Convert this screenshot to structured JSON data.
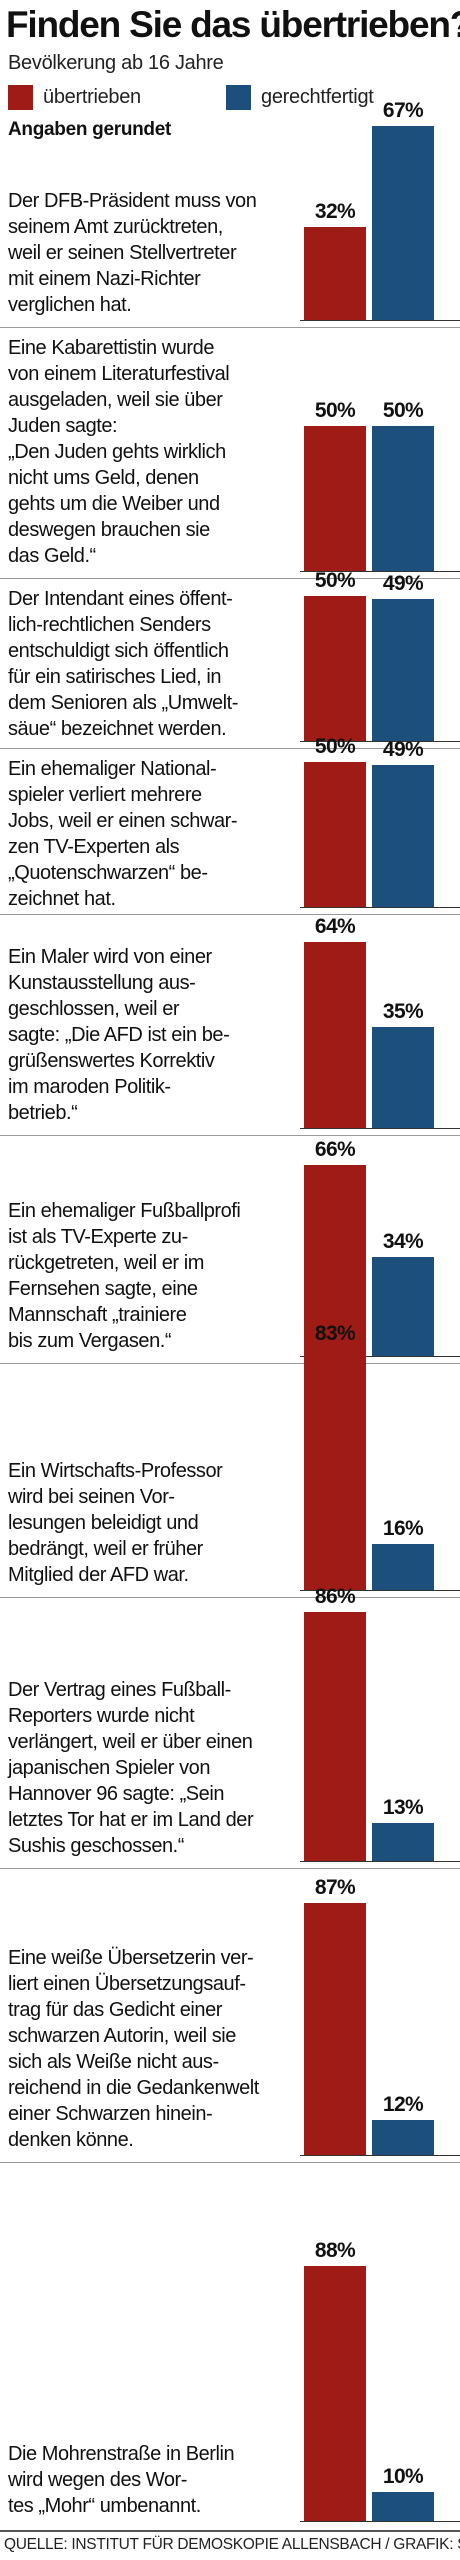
{
  "title": "Finden Sie das übertrieben?",
  "subtitle": "Bevölkerung ab 16 Jahre",
  "note": "Angaben gerundet",
  "source": "QUELLE: INSTITUT FÜR DEMOSKOPIE ALLENSBACH / GRAFIK: SK",
  "colors": {
    "uebertrieben": "#9e1b16",
    "gerechtfertigt": "#1d4f7c"
  },
  "legend": [
    {
      "label": "übertrieben",
      "color": "#9e1b16"
    },
    {
      "label": "gerechtfertigt",
      "color": "#1d4f7c"
    }
  ],
  "chart_data": {
    "type": "bar",
    "title": "Finden Sie das übertrieben?",
    "subtitle": "Bevölkerung ab 16 Jahre",
    "orientation": "vertical",
    "grid": false,
    "legend_position": "top-left",
    "ylim": [
      0,
      100
    ],
    "series": [
      {
        "name": "übertrieben",
        "color": "#9e1b16",
        "values": [
          32,
          50,
          50,
          50,
          64,
          66,
          83,
          86,
          87,
          88
        ]
      },
      {
        "name": "gerechtfertigt",
        "color": "#1d4f7c",
        "values": [
          67,
          50,
          49,
          49,
          35,
          34,
          16,
          13,
          12,
          10
        ]
      }
    ],
    "categories": [
      "Der DFB-Präsident muss von\nseinem Amt zurücktreten,\nweil er seinen Stellvertreter\nmit einem Nazi-Richter\nverglichen hat.",
      "Eine Kabarettistin wurde\nvon einem Literaturfestival\nausgeladen, weil sie über\nJuden sagte:\n„Den Juden gehts wirklich\nnicht ums Geld, denen\ngehts um die Weiber und\ndeswegen brauchen sie\ndas Geld.“",
      "Der Intendant eines öffent-\nlich-rechtlichen Senders\nentschuldigt sich öffentlich\nfür ein satirisches Lied, in\ndem Senioren als „Umwelt-\nsäue“ bezeichnet werden.",
      "Ein ehemaliger National-\nspieler verliert mehrere\nJobs, weil er einen schwar-\nzen TV-Experten als\n„Quotenschwarzen“ be-\nzeichnet hat.",
      "Ein Maler wird von einer\nKunstausstellung aus-\ngeschlossen, weil er\nsagte: „Die AFD ist ein be-\ngrüßenswertes Korrektiv\nim maroden Politik-\nbetrieb.“",
      "Ein ehemaliger Fußballprofi\nist als TV-Experte zu-\nrückgetreten, weil er im\nFernsehen sagte, eine\nMannschaft „trainiere\nbis zum Vergasen.“",
      "Ein Wirtschafts-Professor\nwird bei seinen Vor-\nlesungen beleidigt und\nbedrängt, weil er früher\nMitglied der AFD war.",
      "Der Vertrag eines Fußball-\nReporters wurde nicht\nverlängert, weil er über einen\njapanischen Spieler von\nHannover 96 sagte: „Sein\nletztes Tor hat er im Land der\nSushis geschossen.“",
      "Eine weiße Übersetzerin ver-\nliert einen Übersetzungsauf-\ntrag für das Gedicht einer\nschwarzen Autorin, weil sie\nsich als Weiße nicht aus-\nreichend in die Gedankenwelt\neiner Schwarzen hinein-\ndenken könne.",
      "Die Mohrenstraße in Berlin\nwird wegen des Wor-\ntes „Mohr“ umbenannt."
    ],
    "value_labels": {
      "übertrieben": [
        "32%",
        "50%",
        "50%",
        "50%",
        "64%",
        "66%",
        "83%",
        "86%",
        "87%",
        "88%"
      ],
      "gerechtfertigt": [
        "67%",
        "50%",
        "49%",
        "49%",
        "35%",
        "34%",
        "16%",
        "13%",
        "12%",
        "10%"
      ]
    }
  }
}
